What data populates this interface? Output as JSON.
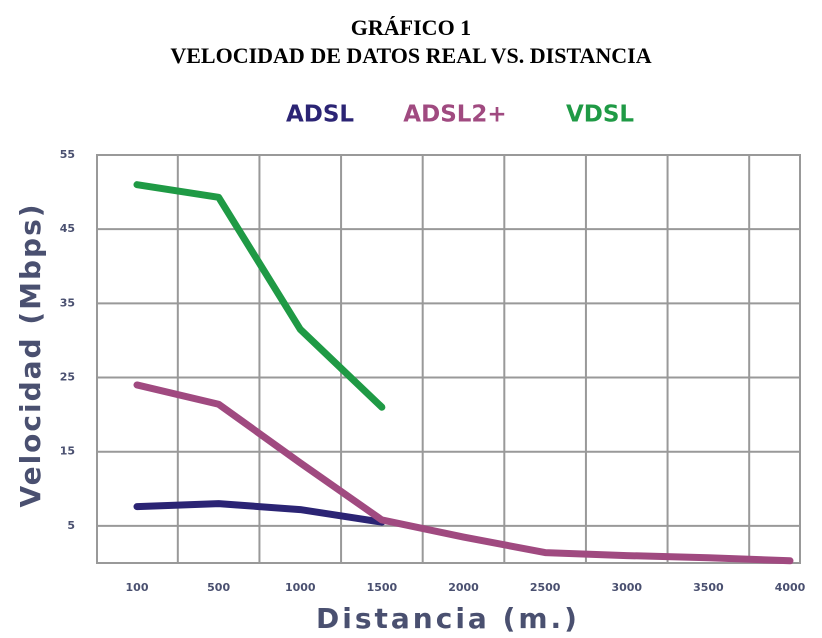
{
  "chart_data": {
    "type": "line",
    "title": "GRÁFICO 1",
    "subtitle": "VELOCIDAD DE DATOS REAL VS. DISTANCIA",
    "xlabel": "Distancia (m.)",
    "ylabel": "Velocidad (Mbps)",
    "categories": [
      "100",
      "500",
      "1000",
      "1500",
      "2000",
      "2500",
      "3000",
      "3500",
      "4000"
    ],
    "series": [
      {
        "name": "ADSL",
        "color": "#2b2474",
        "values": [
          7.6,
          8,
          7.2,
          5.5,
          null,
          null,
          null,
          null,
          null
        ]
      },
      {
        "name": "ADSL2+",
        "color": "#a04a80",
        "values": [
          24,
          21.4,
          13.5,
          5.8,
          3.5,
          1.4,
          1,
          0.7,
          0.3
        ]
      },
      {
        "name": "VDSL",
        "color": "#1f9a45",
        "values": [
          51,
          49.3,
          31.5,
          21,
          null,
          null,
          null,
          null,
          null
        ]
      }
    ],
    "ylim": [
      0,
      55
    ],
    "yticks": [
      5,
      15,
      25,
      35,
      45,
      55
    ],
    "grid": true
  }
}
